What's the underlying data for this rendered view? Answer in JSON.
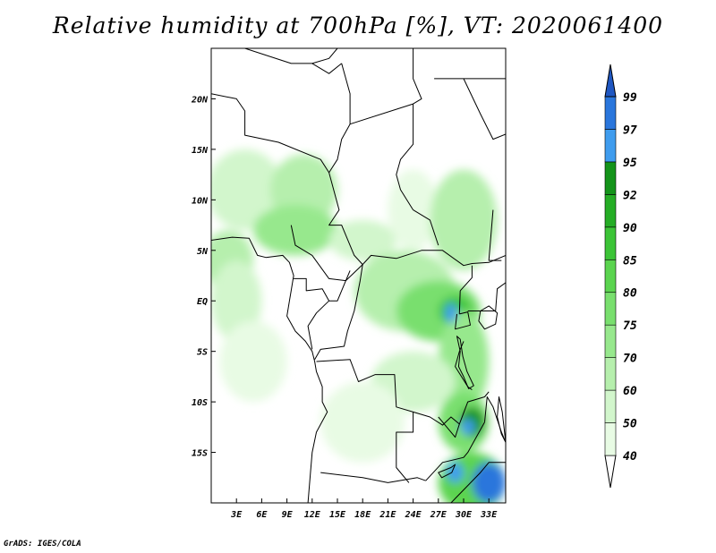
{
  "title": "Relative humidity at 700hPa [%], VT: 2020061400",
  "credit": "GrADS: IGES/COLA",
  "map": {
    "lon_range": [
      0,
      35
    ],
    "lat_range": [
      -20,
      25
    ],
    "x_ticks": [
      {
        "value": 3,
        "label": "3E"
      },
      {
        "value": 6,
        "label": "6E"
      },
      {
        "value": 9,
        "label": "9E"
      },
      {
        "value": 12,
        "label": "12E"
      },
      {
        "value": 15,
        "label": "15E"
      },
      {
        "value": 18,
        "label": "18E"
      },
      {
        "value": 21,
        "label": "21E"
      },
      {
        "value": 24,
        "label": "24E"
      },
      {
        "value": 27,
        "label": "27E"
      },
      {
        "value": 30,
        "label": "30E"
      },
      {
        "value": 33,
        "label": "33E"
      }
    ],
    "y_ticks": [
      {
        "value": 20,
        "label": "20N"
      },
      {
        "value": 15,
        "label": "15N"
      },
      {
        "value": 10,
        "label": "10N"
      },
      {
        "value": 5,
        "label": "5N"
      },
      {
        "value": 0,
        "label": "EQ"
      },
      {
        "value": -5,
        "label": "5S"
      },
      {
        "value": -10,
        "label": "10S"
      },
      {
        "value": -15,
        "label": "15S"
      }
    ]
  },
  "colorbar": {
    "levels": [
      {
        "label": "40",
        "color": "#e8fbe4"
      },
      {
        "label": "50",
        "color": "#d2f6cc"
      },
      {
        "label": "60",
        "color": "#b6efad"
      },
      {
        "label": "70",
        "color": "#97e88d"
      },
      {
        "label": "75",
        "color": "#79df6e"
      },
      {
        "label": "80",
        "color": "#5bd44f"
      },
      {
        "label": "85",
        "color": "#3cc437"
      },
      {
        "label": "90",
        "color": "#25ad25"
      },
      {
        "label": "92",
        "color": "#14941a"
      },
      {
        "label": "95",
        "color": "#3f9cee"
      },
      {
        "label": "97",
        "color": "#2a76dc"
      },
      {
        "label": "99",
        "color": "#1f57c2"
      }
    ],
    "low_color": "#ffffff",
    "high_color": "#1f57c2"
  },
  "field_blobs": [
    {
      "lon": 4,
      "lat": 11,
      "rx": 4.5,
      "ry": 4,
      "level": "50"
    },
    {
      "lon": 11,
      "lat": 11,
      "rx": 4,
      "ry": 3.5,
      "level": "60"
    },
    {
      "lon": 10,
      "lat": 7,
      "rx": 5,
      "ry": 2.5,
      "level": "70"
    },
    {
      "lon": 2,
      "lat": 4,
      "rx": 3,
      "ry": 3,
      "level": "60"
    },
    {
      "lon": 3,
      "lat": 0,
      "rx": 3,
      "ry": 4,
      "level": "50"
    },
    {
      "lon": 5,
      "lat": -6,
      "rx": 4,
      "ry": 4,
      "level": "40"
    },
    {
      "lon": 18,
      "lat": 6,
      "rx": 4,
      "ry": 2,
      "level": "50"
    },
    {
      "lon": 24,
      "lat": 9,
      "rx": 3,
      "ry": 4,
      "level": "40"
    },
    {
      "lon": 30,
      "lat": 8,
      "rx": 4,
      "ry": 5,
      "level": "60"
    },
    {
      "lon": 23,
      "lat": 1,
      "rx": 6,
      "ry": 4,
      "level": "60"
    },
    {
      "lon": 27,
      "lat": -1,
      "rx": 5,
      "ry": 3,
      "level": "75"
    },
    {
      "lon": 29,
      "lat": -1,
      "rx": 2,
      "ry": 1.5,
      "level": "85"
    },
    {
      "lon": 30,
      "lat": -6,
      "rx": 3,
      "ry": 5,
      "level": "70"
    },
    {
      "lon": 24,
      "lat": -8,
      "rx": 5,
      "ry": 3,
      "level": "50"
    },
    {
      "lon": 18,
      "lat": -12,
      "rx": 5,
      "ry": 4,
      "level": "40"
    },
    {
      "lon": 30,
      "lat": -12,
      "rx": 3,
      "ry": 3,
      "level": "75"
    },
    {
      "lon": 31,
      "lat": -12,
      "rx": 1.5,
      "ry": 1.5,
      "level": "92"
    },
    {
      "lon": 31,
      "lat": -18,
      "rx": 4,
      "ry": 3,
      "level": "80"
    },
    {
      "lon": 33,
      "lat": -18,
      "rx": 2,
      "ry": 2,
      "level": "97"
    },
    {
      "lon": 29,
      "lat": -17,
      "rx": 1,
      "ry": 1,
      "level": "95"
    },
    {
      "lon": 30.5,
      "lat": -12.5,
      "rx": 0.8,
      "ry": 0.8,
      "level": "95"
    },
    {
      "lon": 28.5,
      "lat": -1.2,
      "rx": 0.7,
      "ry": 1,
      "level": "95"
    }
  ],
  "borders": [
    [
      [
        0,
        20.5
      ],
      [
        3,
        20
      ],
      [
        4,
        18.8
      ],
      [
        4,
        16.4
      ],
      [
        8,
        15.7
      ],
      [
        13,
        14
      ],
      [
        14,
        12.7
      ],
      [
        15.2,
        9
      ],
      [
        14,
        7.5
      ],
      [
        15.5,
        7.5
      ],
      [
        17,
        4.5
      ],
      [
        18,
        3.6
      ],
      [
        19,
        4.5
      ],
      [
        22,
        4.2
      ],
      [
        25,
        5
      ],
      [
        27.5,
        5
      ],
      [
        30,
        3.5
      ],
      [
        31,
        3.7
      ],
      [
        33,
        3.8
      ],
      [
        35,
        4.5
      ]
    ],
    [
      [
        4,
        25
      ],
      [
        9.5,
        23.5
      ],
      [
        12,
        23.5
      ],
      [
        14,
        22.5
      ],
      [
        15.5,
        23.5
      ]
    ],
    [
      [
        12,
        23.5
      ],
      [
        14,
        24
      ],
      [
        15,
        25
      ]
    ],
    [
      [
        15.5,
        23.5
      ],
      [
        16.5,
        20.5
      ],
      [
        16.5,
        17.5
      ],
      [
        15.5,
        16
      ],
      [
        15,
        14
      ],
      [
        14,
        12.7
      ]
    ],
    [
      [
        16.5,
        17.5
      ],
      [
        24,
        19.5
      ],
      [
        25,
        20
      ],
      [
        24,
        22
      ],
      [
        24,
        25
      ]
    ],
    [
      [
        24,
        19.5
      ],
      [
        24,
        15.5
      ],
      [
        22.5,
        14
      ],
      [
        22,
        12.5
      ],
      [
        22.5,
        11
      ],
      [
        24,
        9
      ]
    ],
    [
      [
        24,
        9
      ],
      [
        26,
        8
      ],
      [
        27,
        5.5
      ]
    ],
    [
      [
        26.5,
        22
      ],
      [
        35,
        22
      ]
    ],
    [
      [
        30,
        22
      ],
      [
        32,
        18.5
      ],
      [
        33.5,
        16
      ],
      [
        35,
        16.5
      ]
    ],
    [
      [
        33.5,
        9
      ],
      [
        33,
        4
      ],
      [
        34.5,
        4
      ]
    ],
    [
      [
        9.5,
        7.5
      ],
      [
        10,
        5.5
      ],
      [
        12,
        4.5
      ],
      [
        14,
        2.2
      ],
      [
        16,
        2
      ],
      [
        16.5,
        3
      ]
    ],
    [
      [
        9.8,
        2.2
      ],
      [
        11.3,
        2.2
      ],
      [
        11.3,
        1
      ],
      [
        13.2,
        1.2
      ],
      [
        14,
        0
      ],
      [
        12.5,
        -1.2
      ],
      [
        11.5,
        -2.5
      ],
      [
        12,
        -4.8
      ]
    ],
    [
      [
        14,
        0
      ],
      [
        15,
        0
      ],
      [
        16,
        2
      ],
      [
        18,
        3.6
      ]
    ],
    [
      [
        18,
        3.6
      ],
      [
        17.7,
        2
      ],
      [
        17,
        -1
      ],
      [
        16.2,
        -3
      ],
      [
        15.8,
        -4.5
      ],
      [
        13,
        -4.8
      ],
      [
        12.3,
        -5.8
      ]
    ],
    [
      [
        12.5,
        -6
      ],
      [
        16.5,
        -5.8
      ],
      [
        17.5,
        -8
      ],
      [
        19.5,
        -7.3
      ],
      [
        21.8,
        -7.3
      ],
      [
        22,
        -10.5
      ],
      [
        24,
        -11
      ],
      [
        24,
        -13
      ],
      [
        22,
        -13
      ],
      [
        22,
        -16.5
      ],
      [
        23.5,
        -18
      ]
    ],
    [
      [
        13,
        -17
      ],
      [
        18,
        -17.5
      ],
      [
        21,
        -18
      ],
      [
        24.5,
        -17.5
      ],
      [
        25.5,
        -17.8
      ]
    ],
    [
      [
        25.5,
        -17.8
      ],
      [
        27.5,
        -16
      ],
      [
        30,
        -15.5
      ],
      [
        30.5,
        -15
      ],
      [
        32.5,
        -12
      ]
    ],
    [
      [
        24,
        -11
      ],
      [
        26,
        -11.5
      ],
      [
        27.5,
        -12.3
      ],
      [
        28.5,
        -11.5
      ],
      [
        29.5,
        -12.2
      ],
      [
        29,
        -13.5
      ],
      [
        28,
        -12.5
      ],
      [
        27,
        -11.5
      ]
    ],
    [
      [
        29.5,
        -12.2
      ],
      [
        30.5,
        -10
      ],
      [
        32.5,
        -9.5
      ],
      [
        33,
        -9
      ]
    ],
    [
      [
        30,
        -4
      ],
      [
        29.5,
        -5
      ],
      [
        29,
        -6.5
      ],
      [
        30.5,
        -8.5
      ],
      [
        31,
        -8.8
      ]
    ],
    [
      [
        29.5,
        -1.3
      ],
      [
        30.5,
        -1.1
      ],
      [
        30.8,
        -2.4
      ],
      [
        29,
        -2.8
      ],
      [
        29.2,
        -1.3
      ]
    ],
    [
      [
        29.6,
        1
      ],
      [
        29.5,
        -1.3
      ]
    ],
    [
      [
        29.6,
        1
      ],
      [
        31,
        2.3
      ],
      [
        31,
        3.5
      ]
    ],
    [
      [
        30.5,
        -1
      ],
      [
        33.8,
        -1
      ],
      [
        34,
        1.2
      ],
      [
        35,
        1.8
      ]
    ],
    [
      [
        32.5,
        -12
      ],
      [
        32.8,
        -9.5
      ],
      [
        33.5,
        -10.5
      ],
      [
        34.5,
        -13
      ],
      [
        35,
        -14
      ]
    ],
    [
      [
        28.5,
        -20
      ],
      [
        32,
        -17
      ],
      [
        33,
        -16
      ],
      [
        35,
        -16
      ]
    ]
  ],
  "coastline": [
    [
      [
        0,
        6
      ],
      [
        2.5,
        6.3
      ],
      [
        4.5,
        6.2
      ],
      [
        5.5,
        4.5
      ],
      [
        6.5,
        4.3
      ],
      [
        8.5,
        4.5
      ],
      [
        9.3,
        3.8
      ],
      [
        9.8,
        2.5
      ],
      [
        9.5,
        1
      ],
      [
        9.3,
        0
      ],
      [
        9,
        -1.5
      ],
      [
        10,
        -3
      ],
      [
        11.2,
        -4
      ],
      [
        12,
        -5
      ],
      [
        12.3,
        -6
      ],
      [
        12.5,
        -7
      ],
      [
        13.2,
        -8.5
      ],
      [
        13.2,
        -10
      ],
      [
        13.8,
        -11
      ],
      [
        12.5,
        -13
      ],
      [
        12,
        -15
      ],
      [
        11.8,
        -17
      ],
      [
        11.5,
        -20
      ]
    ]
  ],
  "lakes": [
    [
      [
        32,
        -1
      ],
      [
        33,
        -0.5
      ],
      [
        34,
        -1.2
      ],
      [
        33.8,
        -2.3
      ],
      [
        32.5,
        -2.8
      ],
      [
        31.8,
        -2
      ],
      [
        32,
        -1
      ]
    ],
    [
      [
        29.2,
        -3.5
      ],
      [
        29.6,
        -5
      ],
      [
        29.4,
        -6.5
      ],
      [
        30,
        -7.5
      ],
      [
        30.6,
        -8.7
      ],
      [
        31.2,
        -8.4
      ],
      [
        30.4,
        -7
      ],
      [
        29.9,
        -5.5
      ],
      [
        29.6,
        -3.8
      ],
      [
        29.2,
        -3.5
      ]
    ],
    [
      [
        34.2,
        -9.5
      ],
      [
        34.6,
        -11
      ],
      [
        34.8,
        -12.5
      ],
      [
        35,
        -14
      ],
      [
        34.5,
        -13.2
      ],
      [
        34,
        -11.5
      ],
      [
        34.2,
        -9.5
      ]
    ],
    [
      [
        27,
        -17
      ],
      [
        28.5,
        -16.5
      ],
      [
        29,
        -16.2
      ],
      [
        28.6,
        -17
      ],
      [
        27.4,
        -17.5
      ],
      [
        27,
        -17
      ]
    ]
  ]
}
